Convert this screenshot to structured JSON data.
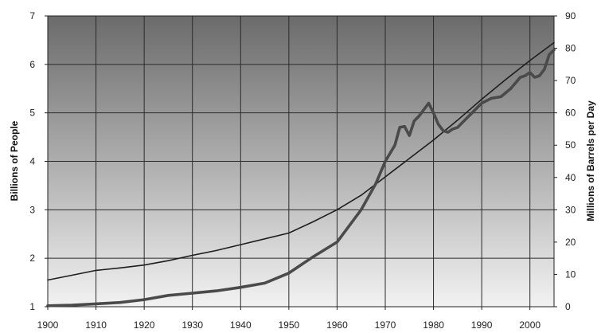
{
  "chart_data": {
    "type": "line",
    "x_ticks": [
      "1900",
      "1910",
      "1920",
      "1930",
      "1940",
      "1950",
      "1960",
      "1970",
      "1980",
      "1990",
      "2000"
    ],
    "y_left_ticks": [
      "1",
      "2",
      "3",
      "4",
      "5",
      "6",
      "7"
    ],
    "y_right_ticks": [
      "0",
      "10",
      "20",
      "30",
      "40",
      "50",
      "60",
      "70",
      "80",
      "90"
    ],
    "ylabel_left": "Billions of People",
    "ylabel_right": "Millions of Barrels per Day",
    "xlim": [
      1900,
      2005
    ],
    "ylim_left": [
      1,
      7
    ],
    "ylim_right": [
      0,
      90
    ],
    "grid": true,
    "series": [
      {
        "axis": "left",
        "x": [
          1900,
          1905,
          1910,
          1915,
          1920,
          1925,
          1930,
          1935,
          1940,
          1945,
          1950,
          1955,
          1960,
          1965,
          1970,
          1975,
          1980,
          1985,
          1990,
          1995,
          2000,
          2005
        ],
        "values": [
          1.55,
          1.65,
          1.75,
          1.8,
          1.86,
          1.95,
          2.06,
          2.16,
          2.28,
          2.4,
          2.52,
          2.75,
          3.0,
          3.3,
          3.68,
          4.06,
          4.44,
          4.85,
          5.28,
          5.69,
          6.08,
          6.45
        ]
      },
      {
        "axis": "right",
        "x": [
          1900,
          1905,
          1910,
          1915,
          1920,
          1925,
          1930,
          1935,
          1940,
          1945,
          1950,
          1955,
          1960,
          1965,
          1968,
          1970,
          1972,
          1973,
          1974,
          1975,
          1976,
          1977,
          1978,
          1979,
          1980,
          1981,
          1982,
          1983,
          1984,
          1985,
          1986,
          1988,
          1990,
          1992,
          1994,
          1996,
          1998,
          1999,
          2000,
          2001,
          2002,
          2003,
          2004,
          2005
        ],
        "values": [
          0.3,
          0.5,
          0.9,
          1.3,
          2.2,
          3.5,
          4.2,
          4.9,
          6.0,
          7.3,
          10.4,
          15.4,
          20.0,
          30.0,
          38.0,
          45.0,
          50.0,
          55.5,
          55.8,
          53.0,
          57.5,
          59.0,
          61.0,
          63.0,
          60.0,
          56.5,
          54.5,
          54.0,
          55.0,
          55.5,
          57.0,
          60.0,
          63.0,
          64.5,
          65.0,
          67.5,
          71.0,
          71.5,
          72.5,
          71.0,
          71.5,
          73.5,
          78.0,
          79.5
        ]
      }
    ]
  }
}
